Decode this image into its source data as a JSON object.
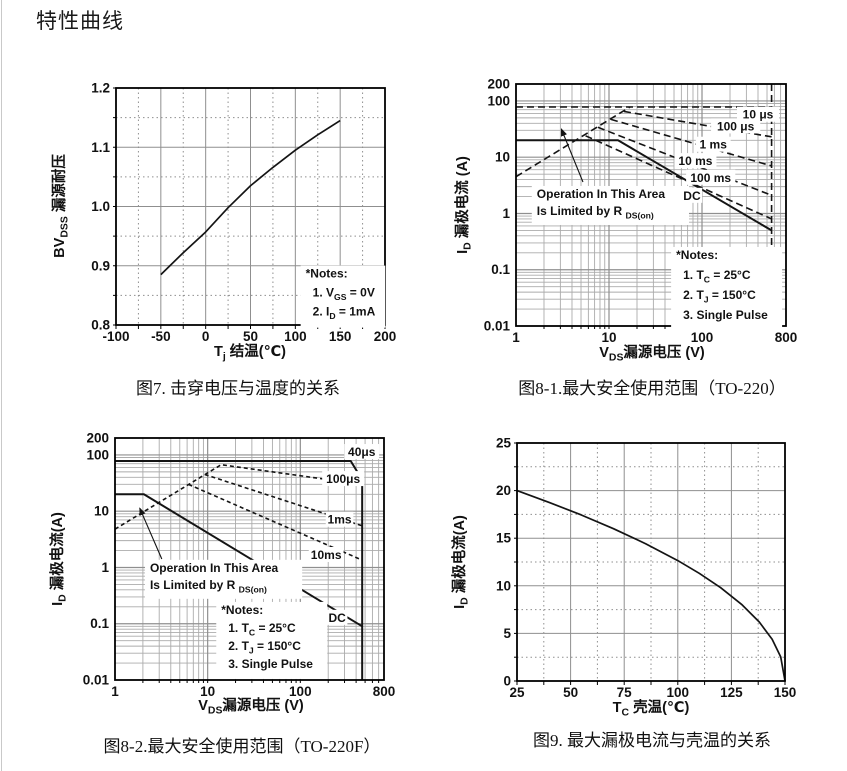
{
  "page": {
    "heading": "特性曲线"
  },
  "colors": {
    "curve": "#141414",
    "grid_major": "#8f8f8f",
    "grid_minor": "#ababab",
    "border": "#000000",
    "text": "#111111",
    "background": "#ffffff"
  },
  "chart_data": [
    {
      "id": "fig7",
      "type": "line",
      "caption": "图7. 击穿电压与温度的关系",
      "xlabel": [
        {
          "t": "T"
        },
        {
          "t": "j",
          "sub": true
        },
        {
          "t": " 结温(℃)"
        }
      ],
      "ylabel": [
        {
          "t": "BV"
        },
        {
          "t": "DSS",
          "sub": true
        },
        {
          "t": " 漏源耐压"
        }
      ],
      "xscale": {
        "type": "linear",
        "min": -100,
        "max": 200
      },
      "yscale": {
        "type": "linear",
        "min": 0.8,
        "max": 1.2
      },
      "xticks": [
        {
          "v": -100,
          "l": "-100"
        },
        {
          "v": -50,
          "l": "-50"
        },
        {
          "v": 0,
          "l": "0"
        },
        {
          "v": 50,
          "l": "50"
        },
        {
          "v": 100,
          "l": "100"
        },
        {
          "v": 150,
          "l": "150"
        },
        {
          "v": 200,
          "l": "200"
        }
      ],
      "yticks": [
        {
          "v": 1.2,
          "l": "1.2"
        },
        {
          "v": 1.1,
          "l": "1.1"
        },
        {
          "v": 1.0,
          "l": "1.0"
        },
        {
          "v": 0.9,
          "l": "0.9"
        },
        {
          "v": 0.8,
          "l": "0.8"
        }
      ],
      "xminor": [
        -75,
        -25,
        25,
        75,
        125,
        175
      ],
      "yminor": [
        0.85,
        0.95,
        1.05,
        1.15
      ],
      "series": [
        {
          "name": "normalized BVDSS vs Tj",
          "dash": false,
          "width": 1.7,
          "points": [
            [
              -50,
              0.885
            ],
            [
              -25,
              0.922
            ],
            [
              0,
              0.957
            ],
            [
              25,
              0.998
            ],
            [
              50,
              1.035
            ],
            [
              75,
              1.066
            ],
            [
              100,
              1.095
            ],
            [
              125,
              1.121
            ],
            [
              150,
              1.145
            ]
          ]
        }
      ],
      "notes": {
        "f": [
          0.705,
          0.8
        ],
        "dy": 19,
        "lines": [
          [
            {
              "t": "*Notes:"
            }
          ],
          [
            {
              "t": "1. V"
            },
            {
              "t": "GS",
              "sub": true
            },
            {
              "t": " = 0V"
            }
          ],
          [
            {
              "t": "2. I"
            },
            {
              "t": "D",
              "sub": true
            },
            {
              "t": " = 1mA"
            }
          ]
        ]
      }
    },
    {
      "id": "fig8_1",
      "type": "line",
      "caption": "图8-1.最大安全使用范围（TO-220）",
      "xlabel": [
        {
          "t": "V"
        },
        {
          "t": "DS",
          "sub": true
        },
        {
          "t": "漏源电压 (V)"
        }
      ],
      "ylabel": [
        {
          "t": "I"
        },
        {
          "t": "D",
          "sub": true
        },
        {
          "t": " 漏极电流 (A)"
        }
      ],
      "xscale": {
        "type": "log",
        "min": 1,
        "max": 800
      },
      "yscale": {
        "type": "log",
        "min": 0.01,
        "max": 200
      },
      "xticks": [
        {
          "v": 1,
          "l": "1"
        },
        {
          "v": 10,
          "l": "10"
        },
        {
          "v": 100,
          "l": "100"
        },
        {
          "v": 800,
          "l": "800"
        }
      ],
      "yticks": [
        {
          "v": 200,
          "l": "200"
        },
        {
          "v": 100,
          "l": "100"
        },
        {
          "v": 10,
          "l": "10"
        },
        {
          "v": 1,
          "l": "1"
        },
        {
          "v": 0.1,
          "l": "0.1"
        },
        {
          "v": 0.01,
          "l": "0.01"
        }
      ],
      "series": [
        {
          "name": "10 μs",
          "dash": true,
          "points": [
            [
              1,
              78
            ],
            [
              560,
              78
            ]
          ]
        },
        {
          "name": "voltage limit",
          "dash": true,
          "points": [
            [
              560,
              200
            ],
            [
              560,
              0.012
            ]
          ]
        },
        {
          "name": "RDS(on) limit",
          "dash": true,
          "points": [
            [
              1,
              4.5
            ],
            [
              16.8,
              78
            ]
          ]
        },
        {
          "name": "100 μs",
          "dash": true,
          "points": [
            [
              14.5,
              65
            ],
            [
              560,
              23
            ]
          ]
        },
        {
          "name": "1 ms",
          "dash": true,
          "points": [
            [
              10.5,
              47
            ],
            [
              560,
              7
            ]
          ]
        },
        {
          "name": "10 ms",
          "dash": true,
          "points": [
            [
              7.6,
              34
            ],
            [
              560,
              2.1
            ]
          ]
        },
        {
          "name": "100 ms",
          "dash": true,
          "points": [
            [
              5.6,
              24
            ],
            [
              560,
              0.8
            ]
          ]
        },
        {
          "name": "DC",
          "dash": false,
          "width": 2,
          "points": [
            [
              1,
              20
            ],
            [
              12.5,
              20
            ],
            [
              560,
              0.5
            ]
          ]
        }
      ],
      "curve_labels": [
        {
          "at": [
            400,
            58
          ],
          "text": "10 μs"
        },
        {
          "at": [
            230,
            36
          ],
          "text": "100 μs"
        },
        {
          "at": [
            132,
            17
          ],
          "text": "1 ms"
        },
        {
          "at": [
            85,
            8.7
          ],
          "text": "10 ms"
        },
        {
          "at": [
            124,
            4.4
          ],
          "text": "100 ms"
        },
        {
          "at": [
            78,
            2.1
          ],
          "text": "DC"
        }
      ],
      "area_label": {
        "f": [
          0.077,
          0.471
        ],
        "dy": 17,
        "lines": [
          [
            {
              "t": "Operation In This Area"
            }
          ],
          [
            {
              "t": "Is Limited by R "
            },
            {
              "t": "DS(on)",
              "sub": true
            }
          ]
        ]
      },
      "arrow": {
        "from": [
          0.248,
          0.405
        ],
        "to": [
          0.168,
          0.186
        ]
      },
      "notes": {
        "f": [
          0.593,
          0.723
        ],
        "dy": 20,
        "lines": [
          [
            {
              "t": "*Notes:"
            }
          ],
          [
            {
              "t": "1. T"
            },
            {
              "t": "C",
              "sub": true
            },
            {
              "t": " = 25°C"
            }
          ],
          [
            {
              "t": "2. T"
            },
            {
              "t": "J",
              "sub": true
            },
            {
              "t": " = 150°C"
            }
          ],
          [
            {
              "t": "3. Single Pulse"
            }
          ]
        ]
      }
    },
    {
      "id": "fig8_2",
      "type": "line",
      "caption": "图8-2.最大安全使用范围（TO-220F）",
      "xlabel": [
        {
          "t": "V"
        },
        {
          "t": "DS",
          "sub": true
        },
        {
          "t": "漏源电压 (V)"
        }
      ],
      "ylabel": [
        {
          "t": "I"
        },
        {
          "t": "D",
          "sub": true
        },
        {
          "t": " 漏极电流(A)"
        }
      ],
      "xscale": {
        "type": "log",
        "min": 1,
        "max": 800
      },
      "yscale": {
        "type": "log",
        "min": 0.01,
        "max": 200
      },
      "xticks": [
        {
          "v": 1,
          "l": "1"
        },
        {
          "v": 10,
          "l": "10"
        },
        {
          "v": 100,
          "l": "100"
        },
        {
          "v": 800,
          "l": "800"
        }
      ],
      "yticks": [
        {
          "v": 200,
          "l": "200"
        },
        {
          "v": 100,
          "l": "100"
        },
        {
          "v": 10,
          "l": "10"
        },
        {
          "v": 1,
          "l": "1"
        },
        {
          "v": 0.1,
          "l": "0.1"
        },
        {
          "v": 0.01,
          "l": "0.01"
        }
      ],
      "series": [
        {
          "name": "40μs",
          "dash": false,
          "width": 2,
          "points": [
            [
              1,
              78
            ],
            [
              350,
              78
            ],
            [
              465,
              36
            ],
            [
              465,
              0.01
            ]
          ]
        },
        {
          "name": "100μs + RDS(on) limit",
          "dash": true,
          "points": [
            [
              1,
              4.8
            ],
            [
              14,
              67
            ],
            [
              465,
              30
            ]
          ]
        },
        {
          "name": "1ms",
          "dash": true,
          "points": [
            [
              9.3,
              45
            ],
            [
              465,
              5.5
            ]
          ]
        },
        {
          "name": "10ms",
          "dash": true,
          "points": [
            [
              6.2,
              30
            ],
            [
              465,
              1.35
            ]
          ]
        },
        {
          "name": "DC",
          "dash": false,
          "width": 2,
          "points": [
            [
              1,
              20
            ],
            [
              2.05,
              20
            ],
            [
              465,
              0.09
            ]
          ]
        }
      ],
      "curve_labels": [
        {
          "at": [
            460,
            115
          ],
          "text": "40μs"
        },
        {
          "at": [
            290,
            38
          ],
          "text": "100μs"
        },
        {
          "at": [
            265,
            7.2
          ],
          "text": "1ms"
        },
        {
          "at": [
            190,
            1.7
          ],
          "text": "10ms"
        },
        {
          "at": [
            250,
            0.13
          ],
          "text": "DC"
        }
      ],
      "area_label": {
        "f": [
          0.13,
          0.553
        ],
        "dy": 17,
        "lines": [
          [
            {
              "t": "Operation In This Area"
            }
          ],
          [
            {
              "t": "Is Limited by R "
            },
            {
              "t": "DS(on)",
              "sub": true
            }
          ]
        ]
      },
      "arrow": {
        "from": [
          0.174,
          0.5
        ],
        "to": [
          0.092,
          0.29
        ]
      },
      "notes": {
        "f": [
          0.395,
          0.727
        ],
        "dy": 18,
        "lines": [
          [
            {
              "t": "*Notes:"
            }
          ],
          [
            {
              "t": "1. T"
            },
            {
              "t": "C",
              "sub": true
            },
            {
              "t": " = 25°C"
            }
          ],
          [
            {
              "t": "2. T"
            },
            {
              "t": "J",
              "sub": true
            },
            {
              "t": " = 150°C"
            }
          ],
          [
            {
              "t": "3. Single Pulse"
            }
          ]
        ]
      }
    },
    {
      "id": "fig9",
      "type": "line",
      "caption": "图9. 最大漏极电流与壳温的关系",
      "xlabel": [
        {
          "t": "T"
        },
        {
          "t": "C",
          "sub": true
        },
        {
          "t": " 壳温(℃)"
        }
      ],
      "ylabel": [
        {
          "t": "I"
        },
        {
          "t": "D",
          "sub": true
        },
        {
          "t": " 漏极电流(A)"
        }
      ],
      "xscale": {
        "type": "linear",
        "min": 25,
        "max": 150
      },
      "yscale": {
        "type": "linear",
        "min": 0,
        "max": 25
      },
      "xticks": [
        {
          "v": 25,
          "l": "25"
        },
        {
          "v": 50,
          "l": "50"
        },
        {
          "v": 75,
          "l": "75"
        },
        {
          "v": 100,
          "l": "100"
        },
        {
          "v": 125,
          "l": "125"
        },
        {
          "v": 150,
          "l": "150"
        }
      ],
      "yticks": [
        {
          "v": 25,
          "l": "25"
        },
        {
          "v": 20,
          "l": "20"
        },
        {
          "v": 15,
          "l": "15"
        },
        {
          "v": 10,
          "l": "10"
        },
        {
          "v": 5,
          "l": "5"
        },
        {
          "v": 0,
          "l": "0"
        }
      ],
      "xminor": [
        37.5,
        62.5,
        87.5,
        112.5,
        137.5
      ],
      "yminor": [
        2.5,
        7.5,
        12.5,
        17.5,
        22.5
      ],
      "series": [
        {
          "name": "ID max vs TC",
          "dash": false,
          "width": 1.7,
          "points": [
            [
              25,
              20
            ],
            [
              40,
              18.76
            ],
            [
              55,
              17.44
            ],
            [
              70,
              16.0
            ],
            [
              85,
              14.42
            ],
            [
              100,
              12.65
            ],
            [
              110,
              11.31
            ],
            [
              120,
              9.8
            ],
            [
              130,
              8.0
            ],
            [
              138,
              6.2
            ],
            [
              144,
              4.38
            ],
            [
              148,
              2.53
            ],
            [
              150,
              0
            ]
          ]
        }
      ]
    }
  ]
}
